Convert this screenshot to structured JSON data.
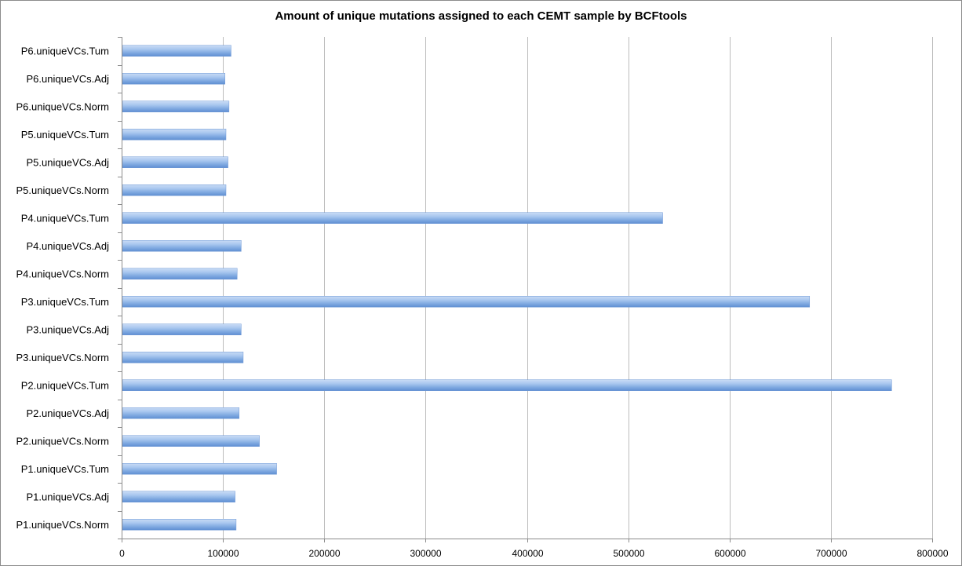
{
  "chart_data": {
    "type": "bar",
    "orientation": "horizontal",
    "title": "Amount of unique mutations assigned to each CEMT sample by BCFtools",
    "xlabel": "",
    "ylabel": "",
    "xlim": [
      0,
      800000
    ],
    "x_ticks": [
      "0",
      "100000",
      "200000",
      "300000",
      "400000",
      "500000",
      "600000",
      "700000",
      "800000"
    ],
    "x_tick_values": [
      0,
      100000,
      200000,
      300000,
      400000,
      500000,
      600000,
      700000,
      800000
    ],
    "grid": "vertical",
    "legend": "none",
    "bar_color": "#8fb4e6",
    "categories": [
      "P1.uniqueVCs.Norm",
      "P1.uniqueVCs.Adj",
      "P1.uniqueVCs.Tum",
      "P2.uniqueVCs.Norm",
      "P2.uniqueVCs.Adj",
      "P2.uniqueVCs.Tum",
      "P3.uniqueVCs.Norm",
      "P3.uniqueVCs.Adj",
      "P3.uniqueVCs.Tum",
      "P4.uniqueVCs.Norm",
      "P4.uniqueVCs.Adj",
      "P4.uniqueVCs.Tum",
      "P5.uniqueVCs.Norm",
      "P5.uniqueVCs.Adj",
      "P5.uniqueVCs.Tum",
      "P6.uniqueVCs.Norm",
      "P6.uniqueVCs.Adj",
      "P6.uniqueVCs.Tum"
    ],
    "values": [
      113000,
      112000,
      153000,
      136000,
      116000,
      760000,
      120000,
      118000,
      679000,
      114000,
      118000,
      534000,
      103000,
      105000,
      103000,
      106000,
      102000,
      108000
    ]
  }
}
